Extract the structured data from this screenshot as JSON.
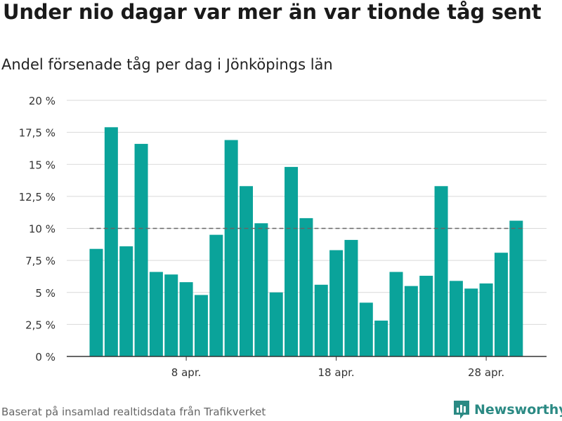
{
  "title": "Under nio dagar var mer än var tionde tåg sent",
  "subtitle": "Andel försenade tåg per dag i Jönköpings län",
  "source": "Baserat på insamlad realtidsdata från Trafikverket",
  "brand": "Newsworthy",
  "colors": {
    "bar": "#0aa39a",
    "grid": "#d9d9d9",
    "axis": "#333333",
    "reference": "#666666",
    "brand": "#2b8a84"
  },
  "chart_data": {
    "type": "bar",
    "x": [
      "2024-04-02",
      "2024-04-03",
      "2024-04-04",
      "2024-04-05",
      "2024-04-06",
      "2024-04-07",
      "2024-04-08",
      "2024-04-09",
      "2024-04-10",
      "2024-04-11",
      "2024-04-12",
      "2024-04-13",
      "2024-04-14",
      "2024-04-15",
      "2024-04-16",
      "2024-04-17",
      "2024-04-18",
      "2024-04-19",
      "2024-04-20",
      "2024-04-21",
      "2024-04-22",
      "2024-04-23",
      "2024-04-24",
      "2024-04-25",
      "2024-04-26",
      "2024-04-27",
      "2024-04-28",
      "2024-04-29",
      "2024-04-30"
    ],
    "values": [
      8.4,
      17.9,
      8.6,
      16.6,
      6.6,
      6.4,
      5.8,
      4.8,
      9.5,
      16.9,
      13.3,
      10.4,
      5.0,
      14.8,
      10.8,
      5.6,
      8.3,
      9.1,
      4.2,
      2.8,
      6.6,
      5.5,
      6.3,
      13.3,
      5.9,
      5.3,
      5.7,
      8.1,
      10.6
    ],
    "ylim": [
      0,
      20
    ],
    "y_ticks": [
      0,
      2.5,
      5,
      7.5,
      10,
      12.5,
      15,
      17.5,
      20
    ],
    "y_tick_labels": [
      "0 %",
      "2,5 %",
      "5 %",
      "7,5 %",
      "10 %",
      "12,5 %",
      "15 %",
      "17,5 %",
      "20 %"
    ],
    "x_ticks": [
      "2024-04-08",
      "2024-04-18",
      "2024-04-28"
    ],
    "x_tick_labels": [
      "8 apr.",
      "18 apr.",
      "28 apr."
    ],
    "reference_line": 10,
    "grid": true,
    "xlabel": "",
    "ylabel": ""
  }
}
